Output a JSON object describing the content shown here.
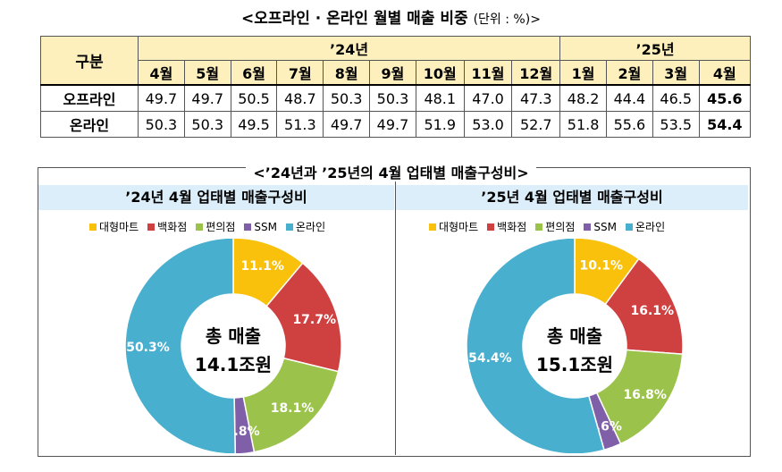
{
  "title": "<오프라인 · 온라인 월별 매출 비중",
  "title_unit": "(단위 : %)>",
  "table": {
    "row_header": "구분",
    "years": [
      {
        "label": "’24년",
        "span": 9
      },
      {
        "label": "’25년",
        "span": 4
      }
    ],
    "months": [
      "4월",
      "5월",
      "6월",
      "7월",
      "8월",
      "9월",
      "10월",
      "11월",
      "12월",
      "1월",
      "2월",
      "3월",
      "4월"
    ],
    "rows": [
      {
        "label": "오프라인",
        "values": [
          "49.7",
          "49.7",
          "50.5",
          "48.7",
          "50.3",
          "50.3",
          "48.1",
          "47.0",
          "47.3",
          "48.2",
          "44.4",
          "46.5",
          "45.6"
        ]
      },
      {
        "label": "온라인",
        "values": [
          "50.3",
          "50.3",
          "49.5",
          "51.3",
          "49.7",
          "49.7",
          "51.9",
          "53.0",
          "52.7",
          "51.8",
          "55.6",
          "53.5",
          "54.4"
        ]
      }
    ]
  },
  "section_title": "<’24년과 ’25년의 4월 업태별 매출구성비>",
  "colors": {
    "대형마트": "#f9c10c",
    "백화점": "#cf4040",
    "편의점": "#9bc34b",
    "SSM": "#7f5fa8",
    "온라인": "#48afcf"
  },
  "chart_data": [
    {
      "type": "pie",
      "title": "’24년 4월 업태별 매출구성비",
      "categories": [
        "대형마트",
        "백화점",
        "편의점",
        "SSM",
        "온라인"
      ],
      "values": [
        11.1,
        17.7,
        18.1,
        2.8,
        50.3
      ],
      "labels": [
        "11.1%",
        "17.7%",
        "18.1%",
        "2.8%",
        "50.3%"
      ],
      "center_line1": "총 매출",
      "center_line2": "14.1조원",
      "legend_position": "top"
    },
    {
      "type": "pie",
      "title": "’25년 4월 업태별 매출구성비",
      "categories": [
        "대형마트",
        "백화점",
        "편의점",
        "SSM",
        "온라인"
      ],
      "values": [
        10.1,
        16.1,
        16.8,
        2.6,
        54.4
      ],
      "labels": [
        "10.1%",
        "16.1%",
        "16.8%",
        "2.6%",
        "54.4%"
      ],
      "center_line1": "총 매출",
      "center_line2": "15.1조원",
      "legend_position": "top"
    }
  ]
}
